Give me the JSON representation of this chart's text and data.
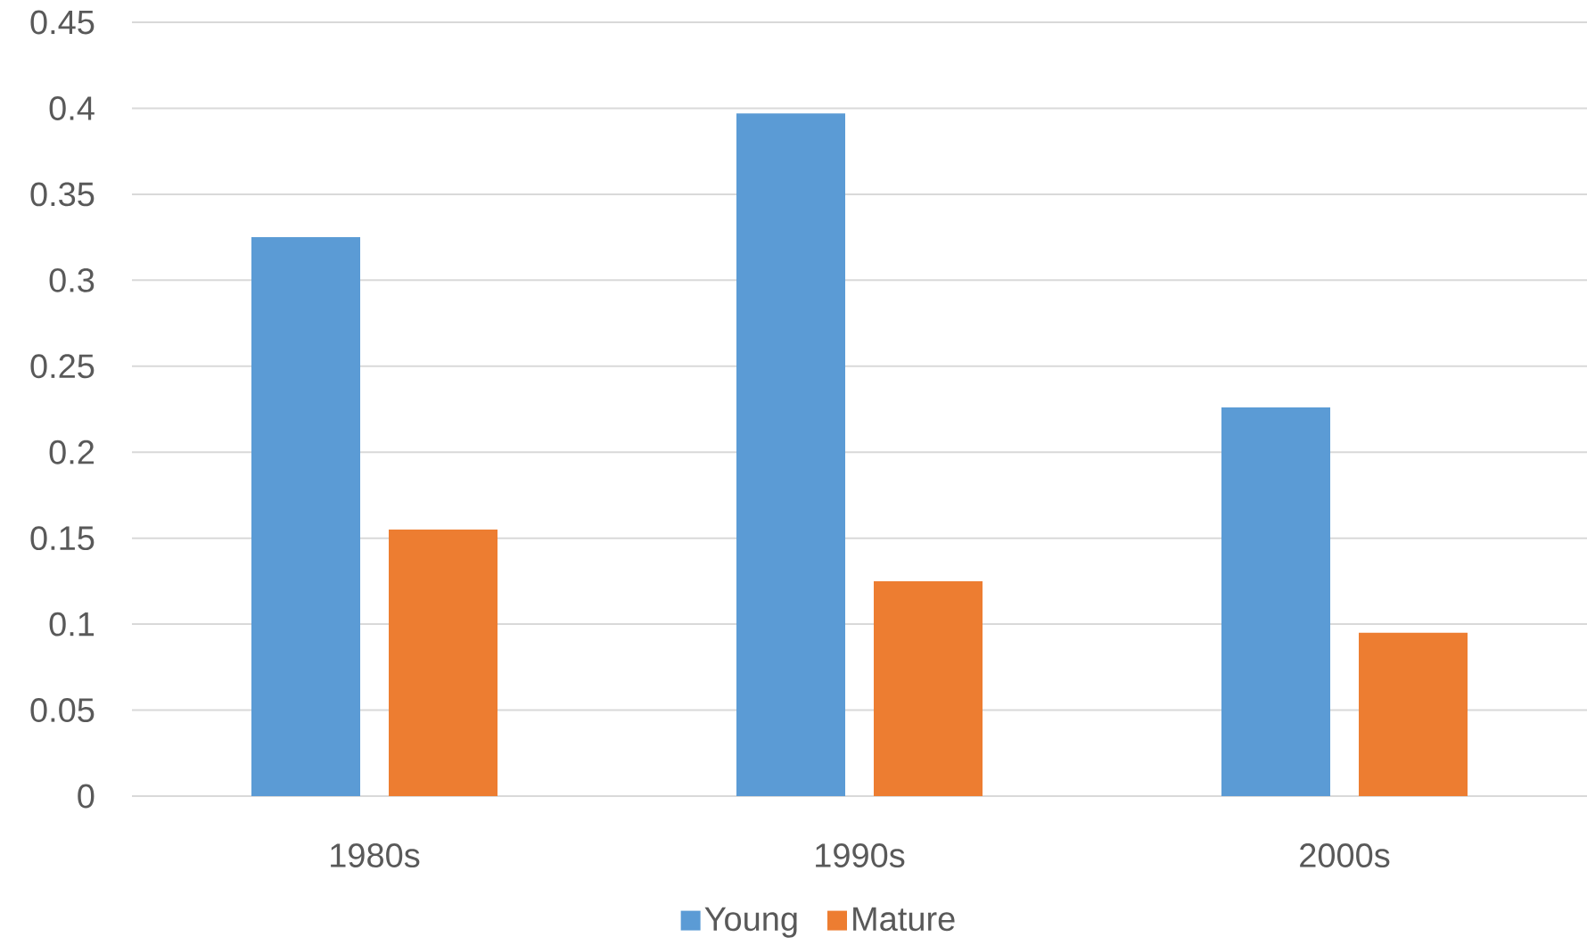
{
  "chart_data": {
    "type": "bar",
    "categories": [
      "1980s",
      "1990s",
      "2000s"
    ],
    "series": [
      {
        "name": "Young",
        "color": "#5b9bd5",
        "values": [
          0.325,
          0.397,
          0.226
        ]
      },
      {
        "name": "Mature",
        "color": "#ed7d31",
        "values": [
          0.155,
          0.125,
          0.095
        ]
      }
    ],
    "ylim": [
      0,
      0.45
    ],
    "yticks": [
      0,
      0.05,
      0.1,
      0.15,
      0.2,
      0.25,
      0.3,
      0.35,
      0.4,
      0.45
    ],
    "grid": "y",
    "legend": "bottom"
  }
}
